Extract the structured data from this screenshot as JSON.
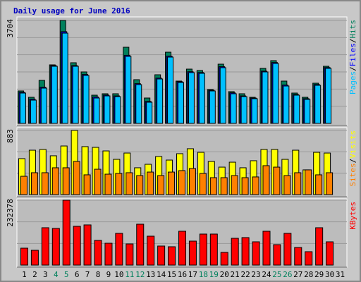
{
  "chart_data": [
    {
      "type": "bar",
      "title": "Daily usage for June 2016",
      "ylim": [
        0,
        3704
      ],
      "yticks": [
        3704
      ],
      "ygrid": [
        617,
        1235,
        1852,
        2469,
        3087
      ],
      "legend_separator": "/",
      "series": [
        {
          "name": "Hits",
          "color": "#00805c",
          "values": [
            1167,
            939,
            1548,
            2106,
            3704,
            2182,
            1852,
            1015,
            1066,
            1066,
            2740,
            1573,
            913,
            1750,
            2562,
            1522,
            1953,
            1903,
            1218,
            2131,
            1142,
            1066,
            939,
            1979,
            2258,
            1522,
            1091,
            939,
            1446,
            2055,
            null
          ]
        },
        {
          "name": "Files",
          "color": "#0000ff",
          "values": [
            1120,
            870,
            1300,
            2080,
            3300,
            2080,
            1760,
            950,
            1020,
            990,
            2450,
            1430,
            790,
            1630,
            2420,
            1500,
            1860,
            1830,
            1190,
            2040,
            1100,
            990,
            910,
            1880,
            2190,
            1380,
            1040,
            890,
            1400,
            2010,
            null
          ]
        },
        {
          "name": "Pages",
          "color": "#00c0ff",
          "values": [
            1091,
            837,
            1269,
            2055,
            3247,
            2055,
            1725,
            913,
            989,
            964,
            2410,
            1395,
            761,
            1598,
            2385,
            1471,
            1827,
            1801,
            1167,
            2004,
            1066,
            964,
            888,
            1852,
            2156,
            1345,
            1015,
            863,
            1370,
            1979,
            null
          ]
        }
      ]
    },
    {
      "type": "bar",
      "ylim": [
        0,
        883
      ],
      "yticks": [
        883
      ],
      "ygrid": [
        294,
        589
      ],
      "legend_separator": "/",
      "series": [
        {
          "name": "Visits",
          "color": "#ffff00",
          "values": [
            495,
            611,
            621,
            534,
            669,
            883,
            660,
            650,
            601,
            485,
            572,
            369,
            417,
            524,
            475,
            563,
            631,
            582,
            456,
            378,
            446,
            369,
            466,
            621,
            621,
            485,
            611,
            340,
            582,
            572,
            null
          ]
        },
        {
          "name": "Sites",
          "color": "#ff8000",
          "values": [
            252,
            301,
            301,
            369,
            369,
            456,
            272,
            349,
            281,
            291,
            301,
            262,
            310,
            262,
            310,
            330,
            359,
            291,
            233,
            233,
            262,
            233,
            243,
            398,
            378,
            262,
            301,
            340,
            272,
            301,
            null
          ]
        }
      ]
    },
    {
      "type": "bar",
      "ylim": [
        0,
        232378
      ],
      "yticks": [
        232378
      ],
      "ygrid": [
        77459,
        154919
      ],
      "categories": [
        "1",
        "2",
        "3",
        "4",
        "5",
        "6",
        "7",
        "8",
        "9",
        "10",
        "11",
        "12",
        "13",
        "14",
        "15",
        "16",
        "17",
        "18",
        "19",
        "20",
        "21",
        "22",
        "23",
        "24",
        "25",
        "26",
        "27",
        "28",
        "29",
        "30",
        "31"
      ],
      "weekend_color": "#00805c",
      "weekend_indices": [
        3,
        4,
        10,
        11,
        17,
        18,
        24,
        25
      ],
      "series": [
        {
          "name": "KBytes",
          "color": "#ff0000",
          "values": [
            60624,
            53046,
            133878,
            131352,
            232378,
            138930,
            143982,
            88410,
            78306,
            113670,
            75780,
            146508,
            103566,
            68202,
            65676,
            121248,
            85884,
            111144,
            111144,
            45468,
            95988,
            98514,
            83358,
            121248,
            73254,
            113670,
            63150,
            47994,
            133878,
            83358,
            null
          ]
        }
      ]
    }
  ]
}
